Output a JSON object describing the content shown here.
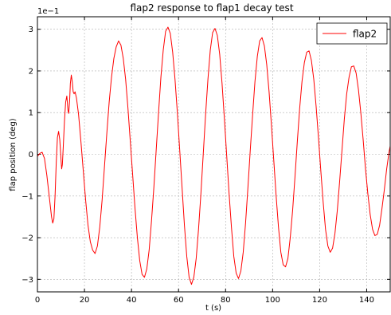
{
  "chart_data": {
    "type": "line",
    "title": "flap2 response to flap1 decay test",
    "xlabel": "t (s)",
    "ylabel": "flap position (deg)",
    "y_scale_label": "1e−1",
    "xlim": [
      0,
      150
    ],
    "ylim": [
      -3.3,
      3.3
    ],
    "xticks": [
      0,
      20,
      40,
      60,
      80,
      100,
      120,
      140
    ],
    "xtick_labels": [
      "0",
      "20",
      "40",
      "60",
      "80",
      "100",
      "120",
      "140"
    ],
    "yticks": [
      -3,
      -2,
      -1,
      0,
      1,
      2,
      3
    ],
    "ytick_labels": [
      "−3",
      "−2",
      "−1",
      "0",
      "1",
      "2",
      "3"
    ],
    "grid": true,
    "legend": {
      "position": "top-right",
      "entries": [
        "flap2"
      ]
    },
    "series": [
      {
        "name": "flap2",
        "color": "#ff0000",
        "points": [
          [
            0,
            -0.05
          ],
          [
            1,
            0.02
          ],
          [
            2,
            0.05
          ],
          [
            3,
            -0.1
          ],
          [
            4,
            -0.5
          ],
          [
            5,
            -1.0
          ],
          [
            6,
            -1.5
          ],
          [
            6.5,
            -1.65
          ],
          [
            7,
            -1.55
          ],
          [
            7.5,
            -1.0
          ],
          [
            8,
            -0.2
          ],
          [
            8.5,
            0.4
          ],
          [
            9,
            0.55
          ],
          [
            9.5,
            0.35
          ],
          [
            10,
            -0.1
          ],
          [
            10.3,
            -0.35
          ],
          [
            10.6,
            -0.25
          ],
          [
            11,
            0.2
          ],
          [
            11.5,
            0.8
          ],
          [
            12,
            1.25
          ],
          [
            12.5,
            1.4
          ],
          [
            13,
            1.05
          ],
          [
            13.3,
            0.98
          ],
          [
            13.7,
            1.3
          ],
          [
            14,
            1.7
          ],
          [
            14.4,
            1.9
          ],
          [
            14.8,
            1.75
          ],
          [
            15.2,
            1.5
          ],
          [
            15.6,
            1.45
          ],
          [
            16,
            1.5
          ],
          [
            16.6,
            1.35
          ],
          [
            17.5,
            0.95
          ],
          [
            18.5,
            0.3
          ],
          [
            19.5,
            -0.4
          ],
          [
            20.5,
            -1.1
          ],
          [
            21.5,
            -1.7
          ],
          [
            22.5,
            -2.1
          ],
          [
            23.5,
            -2.3
          ],
          [
            24.5,
            -2.38
          ],
          [
            25.5,
            -2.2
          ],
          [
            26.5,
            -1.75
          ],
          [
            27.5,
            -1.1
          ],
          [
            28.5,
            -0.3
          ],
          [
            29.5,
            0.5
          ],
          [
            30.5,
            1.25
          ],
          [
            31.5,
            1.85
          ],
          [
            32.5,
            2.3
          ],
          [
            33.5,
            2.58
          ],
          [
            34.5,
            2.72
          ],
          [
            35.5,
            2.62
          ],
          [
            36.5,
            2.3
          ],
          [
            37.5,
            1.8
          ],
          [
            38.5,
            1.1
          ],
          [
            39.5,
            0.3
          ],
          [
            40.5,
            -0.5
          ],
          [
            41.5,
            -1.3
          ],
          [
            42.5,
            -2.0
          ],
          [
            43.5,
            -2.55
          ],
          [
            44.5,
            -2.88
          ],
          [
            45.5,
            -2.95
          ],
          [
            46.5,
            -2.75
          ],
          [
            47.5,
            -2.3
          ],
          [
            48.5,
            -1.6
          ],
          [
            49.5,
            -0.8
          ],
          [
            50.5,
            0.1
          ],
          [
            51.5,
            1.0
          ],
          [
            52.5,
            1.85
          ],
          [
            53.5,
            2.5
          ],
          [
            54.5,
            2.95
          ],
          [
            55.5,
            3.05
          ],
          [
            56.5,
            2.9
          ],
          [
            57.5,
            2.45
          ],
          [
            58.5,
            1.8
          ],
          [
            59.5,
            1.0
          ],
          [
            60.5,
            0.1
          ],
          [
            61.5,
            -0.8
          ],
          [
            62.5,
            -1.7
          ],
          [
            63.5,
            -2.45
          ],
          [
            64.5,
            -2.95
          ],
          [
            65.5,
            -3.12
          ],
          [
            66.5,
            -2.95
          ],
          [
            67.5,
            -2.5
          ],
          [
            68.5,
            -1.8
          ],
          [
            69.5,
            -0.95
          ],
          [
            70.5,
            0.0
          ],
          [
            71.5,
            0.95
          ],
          [
            72.5,
            1.8
          ],
          [
            73.5,
            2.5
          ],
          [
            74.5,
            2.92
          ],
          [
            75.5,
            3.02
          ],
          [
            76.5,
            2.85
          ],
          [
            77.5,
            2.4
          ],
          [
            78.5,
            1.7
          ],
          [
            79.5,
            0.85
          ],
          [
            80.5,
            -0.05
          ],
          [
            81.5,
            -0.95
          ],
          [
            82.5,
            -1.75
          ],
          [
            83.5,
            -2.45
          ],
          [
            84.5,
            -2.85
          ],
          [
            85.5,
            -2.98
          ],
          [
            86.5,
            -2.8
          ],
          [
            87.5,
            -2.35
          ],
          [
            88.5,
            -1.65
          ],
          [
            89.5,
            -0.8
          ],
          [
            90.5,
            0.1
          ],
          [
            91.5,
            0.95
          ],
          [
            92.5,
            1.75
          ],
          [
            93.5,
            2.35
          ],
          [
            94.5,
            2.72
          ],
          [
            95.5,
            2.8
          ],
          [
            96.5,
            2.6
          ],
          [
            97.5,
            2.15
          ],
          [
            98.5,
            1.5
          ],
          [
            99.5,
            0.7
          ],
          [
            100.5,
            -0.15
          ],
          [
            101.5,
            -1.0
          ],
          [
            102.5,
            -1.75
          ],
          [
            103.5,
            -2.35
          ],
          [
            104.5,
            -2.65
          ],
          [
            105.5,
            -2.7
          ],
          [
            106.5,
            -2.5
          ],
          [
            107.5,
            -2.0
          ],
          [
            108.5,
            -1.35
          ],
          [
            109.5,
            -0.55
          ],
          [
            110.5,
            0.3
          ],
          [
            111.5,
            1.1
          ],
          [
            112.5,
            1.75
          ],
          [
            113.5,
            2.2
          ],
          [
            114.5,
            2.45
          ],
          [
            115.5,
            2.48
          ],
          [
            116.5,
            2.25
          ],
          [
            117.5,
            1.8
          ],
          [
            118.5,
            1.15
          ],
          [
            119.5,
            0.4
          ],
          [
            120.5,
            -0.4
          ],
          [
            121.5,
            -1.15
          ],
          [
            122.5,
            -1.8
          ],
          [
            123.5,
            -2.2
          ],
          [
            124.5,
            -2.35
          ],
          [
            125.5,
            -2.25
          ],
          [
            126.5,
            -1.9
          ],
          [
            127.5,
            -1.35
          ],
          [
            128.5,
            -0.65
          ],
          [
            129.5,
            0.1
          ],
          [
            130.5,
            0.85
          ],
          [
            131.5,
            1.45
          ],
          [
            132.5,
            1.85
          ],
          [
            133.5,
            2.1
          ],
          [
            134.5,
            2.12
          ],
          [
            135.5,
            1.95
          ],
          [
            136.5,
            1.55
          ],
          [
            137.5,
            1.0
          ],
          [
            138.5,
            0.35
          ],
          [
            139.5,
            -0.35
          ],
          [
            140.5,
            -0.95
          ],
          [
            141.5,
            -1.45
          ],
          [
            142.5,
            -1.8
          ],
          [
            143.5,
            -1.95
          ],
          [
            144.5,
            -1.92
          ],
          [
            145.5,
            -1.7
          ],
          [
            146.5,
            -1.3
          ],
          [
            147.5,
            -0.85
          ],
          [
            148.5,
            -0.35
          ],
          [
            149.5,
            0.05
          ],
          [
            150,
            0.2
          ]
        ]
      }
    ]
  }
}
